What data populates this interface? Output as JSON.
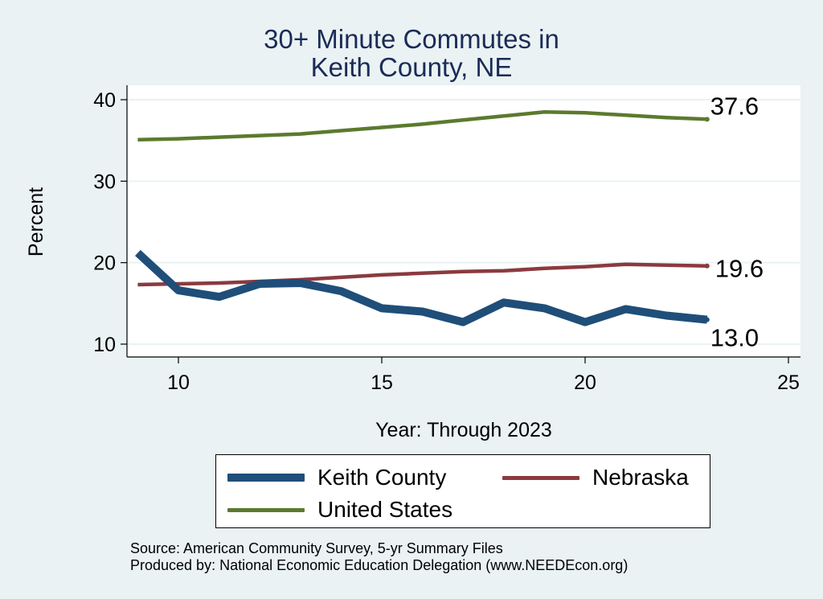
{
  "chart_data": {
    "type": "line",
    "title": [
      "30+ Minute Commutes in",
      "Keith County, NE"
    ],
    "xlabel": "Year: Through 2023",
    "ylabel": "Percent",
    "xlim": [
      9,
      25
    ],
    "ylim": [
      10,
      40
    ],
    "xticks": [
      10,
      15,
      20,
      25
    ],
    "yticks": [
      10,
      20,
      30,
      40
    ],
    "grid": "horizontal",
    "legend_position": "bottom",
    "x": [
      9,
      10,
      11,
      12,
      13,
      14,
      15,
      16,
      17,
      18,
      19,
      20,
      21,
      22,
      23
    ],
    "series": [
      {
        "name": "Keith County",
        "color": "#1f4e79",
        "values": [
          21.2,
          16.6,
          15.8,
          17.4,
          17.5,
          16.5,
          14.4,
          14.0,
          12.7,
          15.1,
          14.4,
          12.7,
          14.3,
          13.5,
          13.0
        ],
        "end_label": "13.0"
      },
      {
        "name": "Nebraska",
        "color": "#8b3a3f",
        "values": [
          17.3,
          17.4,
          17.5,
          17.7,
          17.9,
          18.2,
          18.5,
          18.7,
          18.9,
          19.0,
          19.3,
          19.5,
          19.8,
          19.7,
          19.6
        ],
        "end_label": "19.6"
      },
      {
        "name": "United States",
        "color": "#5b7a2e",
        "values": [
          35.1,
          35.2,
          35.4,
          35.6,
          35.8,
          36.2,
          36.6,
          37.0,
          37.5,
          38.0,
          38.5,
          38.4,
          38.1,
          37.8,
          37.6
        ],
        "end_label": "37.6"
      }
    ]
  },
  "source": {
    "line1": "Source: American Community Survey, 5-yr Summary Files",
    "line2": "Produced by: National Economic Education Delegation (www.NEEDEcon.org)"
  }
}
